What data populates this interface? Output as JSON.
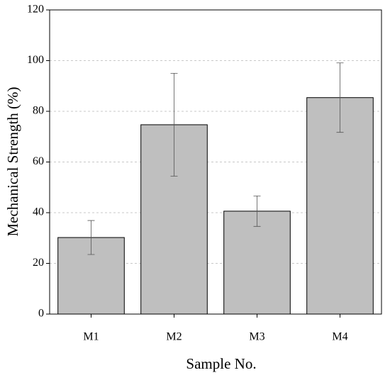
{
  "chart_data": {
    "type": "bar",
    "x_label": "Sample No.",
    "y_label": "Mechanical Strength (%)",
    "categories": [
      "M1",
      "M2",
      "M3",
      "M4"
    ],
    "values": [
      30.2,
      74.7,
      40.6,
      85.4
    ],
    "errors": [
      6.7,
      20.3,
      6.0,
      13.7
    ],
    "color": "#bfbfbf",
    "ylim": [
      0,
      120
    ],
    "yticks": [
      0,
      20,
      40,
      60,
      80,
      100,
      120
    ],
    "grid": true
  }
}
